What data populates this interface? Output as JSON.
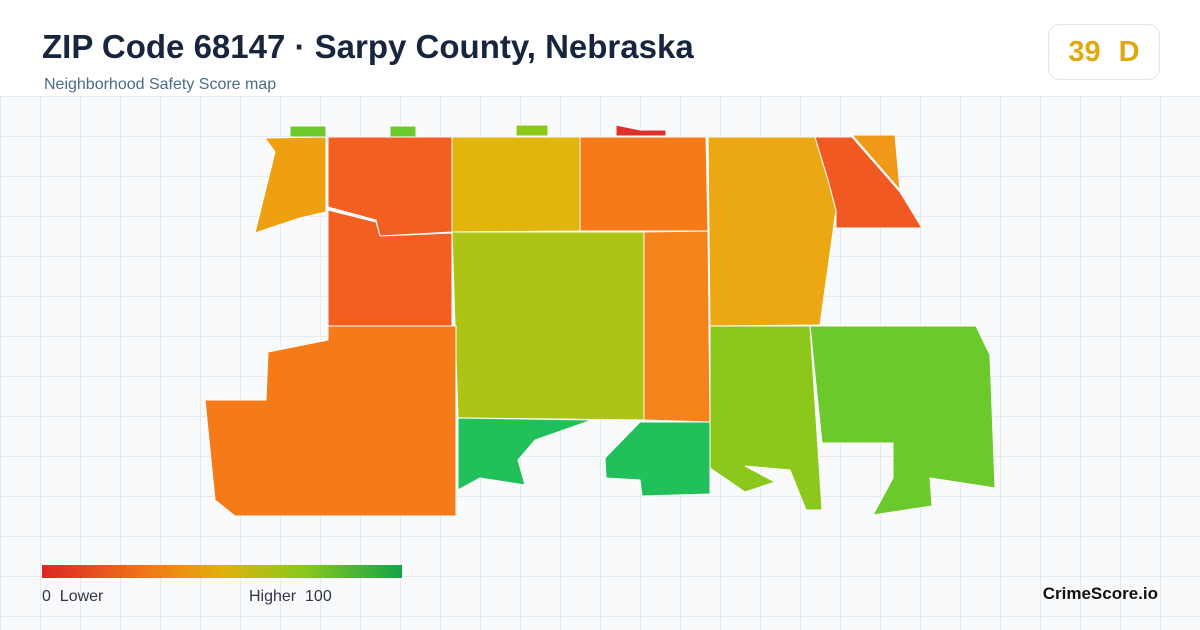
{
  "header": {
    "title": "ZIP Code 68147 · Sarpy County, Nebraska",
    "subtitle": "Neighborhood Safety Score map"
  },
  "score": {
    "value": 39,
    "grade": "D"
  },
  "legend": {
    "min": 0,
    "min_label": "Lower",
    "max_label": "Higher",
    "max": 100
  },
  "brand": "CrimeScore.io"
}
